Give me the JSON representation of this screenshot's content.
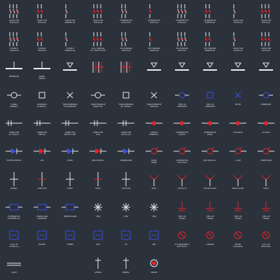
{
  "app": {
    "background": "#2b323b",
    "colors": {
      "white": "#e8eaee",
      "red": "#e2232b",
      "blue": "#3a4fe3",
      "grey": "#9aa2ad"
    }
  },
  "rows": [
    {
      "cells": [
        {
          "icon": "contactor-tripolar-icon",
          "label": "CONTACTOR\nTRIPOLAR"
        },
        {
          "icon": "contactor-bipolar-icon",
          "label": "CONTACTOR\nBIPOLAR"
        },
        {
          "icon": "contactor-monopolar-icon",
          "label": "CONTACTOR\nMONOPOLAR"
        },
        {
          "icon": "relay-coil-icon",
          "label": "CONTACTOR\nTRIPOLAR"
        },
        {
          "icon": "interruptor-icon",
          "label": "INTERRUPTOR\nAUXILIAR"
        },
        {
          "icon": "interruptor-aux-icon",
          "label": "INTERRUPTOR\nTRIPOLAR"
        },
        {
          "icon": "switch-bipolar-icon",
          "label": "INTERRUPTOR\nBIPOLAR"
        },
        {
          "icon": "switch-monopolar-icon",
          "label": "INTERRUPTOR\nMONOPOLAR"
        },
        {
          "icon": "contactor-tripolar-2-icon",
          "label": "CONTACTOR\nTRIPOLAR"
        },
        {
          "icon": "contactor-bipolar-2-icon",
          "label": "CONTACTOR\nBIPOLAR"
        }
      ]
    },
    {
      "cells": [
        {
          "icon": "fuse-tripolar-icon",
          "label": "FUSIBLE\nTRIPOLAR"
        },
        {
          "icon": "fuse-bipolar-icon",
          "label": "FUSIBLE\nBIPOLAR"
        },
        {
          "icon": "fuse-monopolar-icon",
          "label": "FUSIBLE\nMONOPOLAR"
        },
        {
          "icon": "general-box-icon",
          "label": "CAJA GENERAL\nDE PROTECCION"
        },
        {
          "icon": "disconnector-icon",
          "label": "SECCIONADOR\nTRIPOLAR"
        },
        {
          "icon": "disconnector-bipolar-icon",
          "label": "SECCIONADOR\nTRIPOLAR"
        },
        {
          "icon": "disconnector-monopolar-icon",
          "label": "SECCIONADOR\nBIPOLAR"
        },
        {
          "icon": "disconnector-2-icon",
          "label": "SECCIONADOR\nMONOPOLAR"
        },
        {
          "icon": "contactor-tripolar-3-icon",
          "label": "CONTACTOR\nTRIPOLAR"
        },
        {
          "icon": "contactor-bipolar-3-icon",
          "label": "CONTACTOR\nBIPOLAR"
        }
      ]
    },
    {
      "cells": [
        {
          "icon": "busbar-icon",
          "label": "EMBARRADO"
        },
        {
          "icon": "bar-simple-icon",
          "label": "BARRA\nSIMPLE"
        },
        {
          "icon": "bar-icon",
          "label": ""
        },
        {
          "icon": "multi-pole-icon",
          "label": ""
        },
        {
          "icon": "busbar-red-icon",
          "label": ""
        },
        {
          "icon": "triangle-icon",
          "label": ""
        },
        {
          "icon": "bar-icon-2",
          "label": ""
        },
        {
          "icon": "bar-icon-3",
          "label": ""
        },
        {
          "icon": "bar-icon-4",
          "label": ""
        },
        {
          "icon": "bar-icon-5",
          "label": ""
        }
      ]
    },
    {
      "cells": [
        {
          "icon": "ground-icon",
          "label": "TIERRA\nGENERAL"
        },
        {
          "icon": "lamp-icon",
          "label": "LUMINARIA\nFLUORESC."
        },
        {
          "icon": "transformer-icon",
          "label": "TRANSFORMADOR\nAISLAMIENTO"
        },
        {
          "icon": "semicircle-icon",
          "label": "TRANSFORMADOR\nREDUCTOR"
        },
        {
          "icon": "double-icon",
          "label": "TRANSFORMADOR\nDE MEDIDA"
        },
        {
          "icon": "hourglass-icon",
          "label": "TRANSFORMADOR\nTOROIDAL"
        },
        {
          "icon": "plug-icon",
          "label": "TOMA DE\nCORRIENTE"
        },
        {
          "icon": "socket-icon",
          "label": "TOMA DE\nCORRIENTE"
        },
        {
          "icon": "motor-icon",
          "label": "MOTOR"
        },
        {
          "icon": "generator-icon",
          "label": "GENERADOR"
        }
      ]
    },
    {
      "cells": [
        {
          "icon": "cond-1-icon",
          "label": "CONDUCTOR\nDE PUESTA"
        },
        {
          "icon": "cond-2-icon",
          "label": "CONDUCTOR\nNEUTRO"
        },
        {
          "icon": "cond-3-icon",
          "label": "CONDUCTOR\nPROTECCION"
        },
        {
          "icon": "cond-4-icon",
          "label": "CONDUCTOR\nFASE"
        },
        {
          "icon": "cond-5-icon",
          "label": "CONDUCTOR\nTRIFASICO"
        },
        {
          "icon": "lamp-red-icon",
          "label": "LAMPARA\nGENERICA"
        },
        {
          "icon": "interrupt-icon",
          "label": "INTERRUPTOR\nSIMPLE"
        },
        {
          "icon": "interrupt-2-icon",
          "label": "INTERRUPTOR\nDOBLE"
        },
        {
          "icon": "pulsador-icon",
          "label": "PULSADOR"
        },
        {
          "icon": "alt-icon",
          "label": "ALTAVOZ"
        }
      ]
    },
    {
      "cells": [
        {
          "icon": "pmeter-icon",
          "label": "POTENCIOMETRO"
        },
        {
          "icon": "led-icon",
          "label": "LED"
        },
        {
          "icon": "diode-icon",
          "label": "DIODO"
        },
        {
          "icon": "resistor-icon",
          "label": "RESISTENCIA"
        },
        {
          "icon": "capacitor-icon",
          "label": "CONDENSADOR"
        },
        {
          "icon": "zener-icon",
          "label": "DIODO\nZENER"
        },
        {
          "icon": "interrupt-3-icon",
          "label": "INTERRUPTOR\nPOSICION"
        },
        {
          "icon": "valve-icon",
          "label": "ELECTROVALV."
        },
        {
          "icon": "key-icon",
          "label": "LLAVE"
        },
        {
          "icon": "key-2-icon",
          "label": "CONMUTADOR"
        }
      ]
    },
    {
      "cells": [
        {
          "icon": "bus-icon",
          "label": "BORNAS"
        },
        {
          "icon": "connector-icon",
          "label": "CONECTOR"
        },
        {
          "icon": "diode-2-icon",
          "label": "DIODO"
        },
        {
          "icon": "triac-icon",
          "label": "TRIAC"
        },
        {
          "icon": "thyristor-icon",
          "label": "TIRISTOR"
        },
        {
          "icon": "relay-icon",
          "label": "RELE"
        },
        {
          "icon": "contact-red-icon",
          "label": "CONTACTO"
        },
        {
          "icon": "fork-icon",
          "label": "BIFURCACION"
        },
        {
          "icon": "fork-2-icon",
          "label": "DERIVACION"
        },
        {
          "icon": "cross-icon",
          "label": "CRUCE"
        }
      ]
    },
    {
      "cells": [
        {
          "icon": "inter-icon",
          "label": "INTERRUPTOR\nDIFERENCIAL"
        },
        {
          "icon": "conmut-icon",
          "label": "CONMUTADOR\nINVERSOR"
        },
        {
          "icon": "timer-icon",
          "label": "TEMPORIZADOR"
        },
        {
          "icon": "star-icon",
          "label": "TOMA"
        },
        {
          "icon": "star-2-icon",
          "label": "TOMA"
        },
        {
          "icon": "star-3-icon",
          "label": "TOMA"
        },
        {
          "icon": "toma-red-icon",
          "label": "TOMA DE\nTIERRA"
        },
        {
          "icon": "toma-red-2-icon",
          "label": "TOMA DE\nTIERRA"
        },
        {
          "icon": "toma-red-3-icon",
          "label": "TOMA DE\nTIERRA"
        },
        {
          "icon": "toma-red-4-icon",
          "label": "TOMA DE\nTIERRA"
        }
      ]
    },
    {
      "cells": [
        {
          "icon": "box-icon",
          "label": "CAJA DE\nESTRELLA"
        },
        {
          "icon": "buzzer-icon",
          "label": "BUZZER"
        },
        {
          "icon": "chimney-icon",
          "label": "TIMBRE"
        },
        {
          "icon": "nor-icon",
          "label": "NOR"
        },
        {
          "icon": "or-icon",
          "label": "OR"
        },
        {
          "icon": "and-icon",
          "label": "AND"
        },
        {
          "icon": "acc-icon",
          "label": "ACCIONAMIENTO\nELECTRICO"
        },
        {
          "icon": "lamp-2-icon",
          "label": "LAMPARA"
        },
        {
          "icon": "button-2-icon",
          "label": "BOTON\nPULSADOR"
        },
        {
          "icon": "box-2-icon",
          "label": "CAJA DE\nREGISTRO"
        }
      ]
    },
    {
      "cells": [
        {
          "icon": "cable-icon",
          "label": "CABLE"
        },
        {
          "icon": "",
          "label": ""
        },
        {
          "icon": "",
          "label": ""
        },
        {
          "icon": "antenna-icon",
          "label": "ANTENA"
        },
        {
          "icon": "coil-icon",
          "label": "BOBINA"
        },
        {
          "icon": "target-icon",
          "label": "SENSOR"
        },
        {
          "icon": "",
          "label": ""
        },
        {
          "icon": "",
          "label": ""
        },
        {
          "icon": "",
          "label": ""
        },
        {
          "icon": "",
          "label": ""
        }
      ]
    }
  ]
}
